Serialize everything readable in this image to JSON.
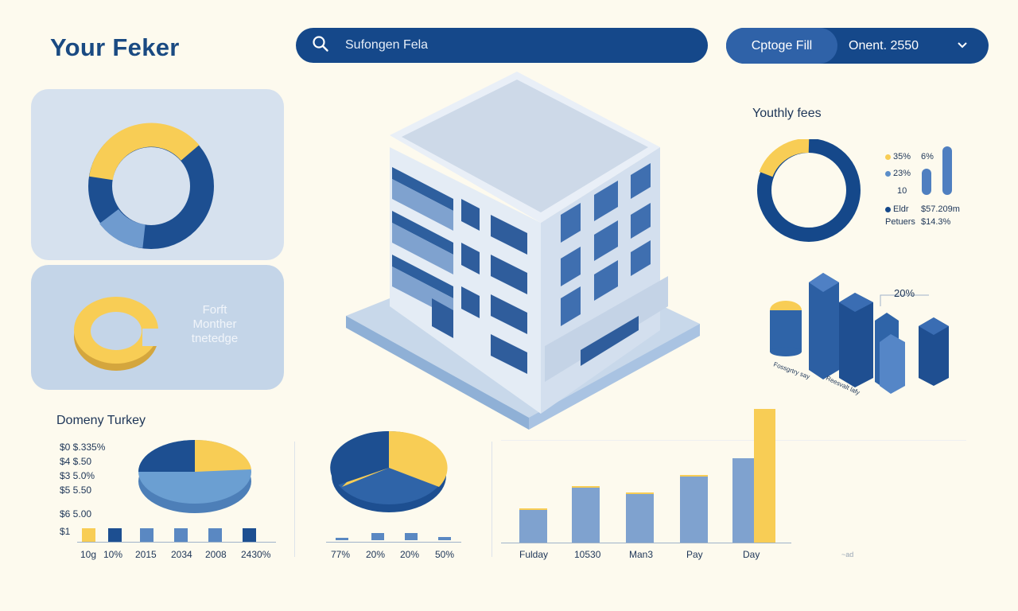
{
  "header": {
    "title": "Your Feker",
    "search_value": "Sufongen Fela",
    "toggle_option": "Cptoge Fill",
    "select_value": "Onent. 2550"
  },
  "colors": {
    "navy": "#15488a",
    "dark_blue": "#1d4f91",
    "mid_blue": "#6f9bcf",
    "yellow": "#f8cd55",
    "card": "#d6e1ee",
    "background": "#fdfaee"
  },
  "icons": {
    "search": "search-icon",
    "dropdown": "chevron-down-icon",
    "building": "building-illustration"
  },
  "left_cards": {
    "donut_card": {
      "segments": [
        "yellow",
        "dark_blue",
        "mid_blue",
        "dark_blue"
      ]
    },
    "ring_card": {
      "label_lines": [
        "Forft",
        "Monther",
        "tnetedge"
      ]
    }
  },
  "youthly": {
    "title": "Youthly fees",
    "legend": [
      {
        "label": "35%",
        "value": "6%"
      },
      {
        "label": "23%",
        "value": ""
      },
      {
        "label": "10",
        "value": ""
      },
      {
        "label": "Eldr",
        "value": "$57.209m"
      },
      {
        "label": "Petuers",
        "value": "$14.3%"
      }
    ]
  },
  "bars3d": {
    "annotation": "20%",
    "labels": [
      "Fossgrtry say",
      "Reesvalt lafy"
    ]
  },
  "domeny": {
    "title": "Domeny Turkey",
    "legend": [
      "$0  $.335%",
      "$4  $.50",
      "$3  5.0%",
      "$5  5.50",
      "$6  5.00",
      "$1"
    ],
    "x_labels": [
      "10g",
      "10%",
      "2015",
      "2034",
      "2008",
      "2430%"
    ]
  },
  "pie2": {
    "x_labels": [
      "77%",
      "20%",
      "20%",
      "50%"
    ]
  },
  "barchart": {
    "x_labels": [
      "Fulday",
      "10530",
      "Man3",
      "Pay",
      "Day"
    ],
    "watermark": "~ad"
  }
}
